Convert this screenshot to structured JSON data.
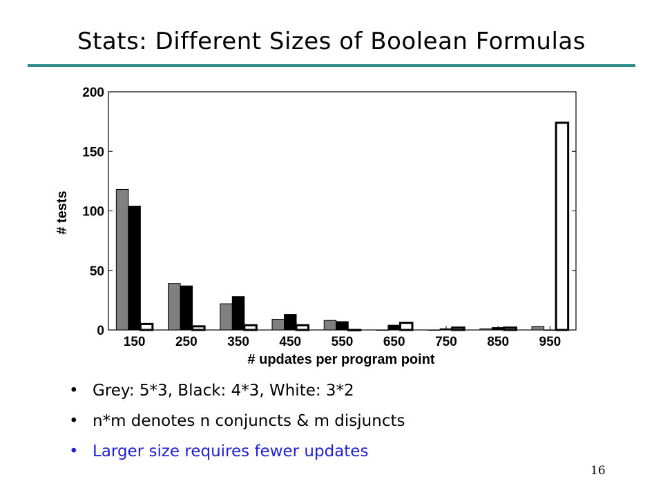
{
  "slide": {
    "title": "Stats: Different Sizes of Boolean Formulas",
    "page_number": "16"
  },
  "colors": {
    "rule": "#2e8b8b",
    "highlight_text": "#1f1fd6",
    "text": "#000000"
  },
  "bullets": [
    {
      "text": "Grey: 5*3, Black: 4*3, White: 3*2",
      "highlight": false
    },
    {
      "text": "n*m denotes n conjuncts & m disjuncts",
      "highlight": false
    },
    {
      "text": "Larger size requires fewer updates",
      "highlight": true
    }
  ],
  "chart_data": {
    "type": "bar",
    "title": "",
    "xlabel": "# updates per program point",
    "ylabel": "# tests",
    "categories": [
      "150",
      "250",
      "350",
      "450",
      "550",
      "650",
      "750",
      "850",
      "950"
    ],
    "ylim": [
      0,
      200
    ],
    "yticks": [
      0,
      50,
      100,
      150,
      200
    ],
    "grid": false,
    "legend": "none",
    "series": [
      {
        "values": [
          118,
          39,
          22,
          9,
          8,
          0,
          0,
          1,
          3
        ],
        "color": "#808080"
      },
      {
        "values": [
          104,
          37,
          28,
          13,
          7,
          4,
          1,
          2,
          0
        ],
        "color": "#000000"
      },
      {
        "values": [
          5,
          3,
          4,
          4,
          0,
          6,
          2,
          2,
          174
        ],
        "color": "#ffffff"
      }
    ]
  }
}
